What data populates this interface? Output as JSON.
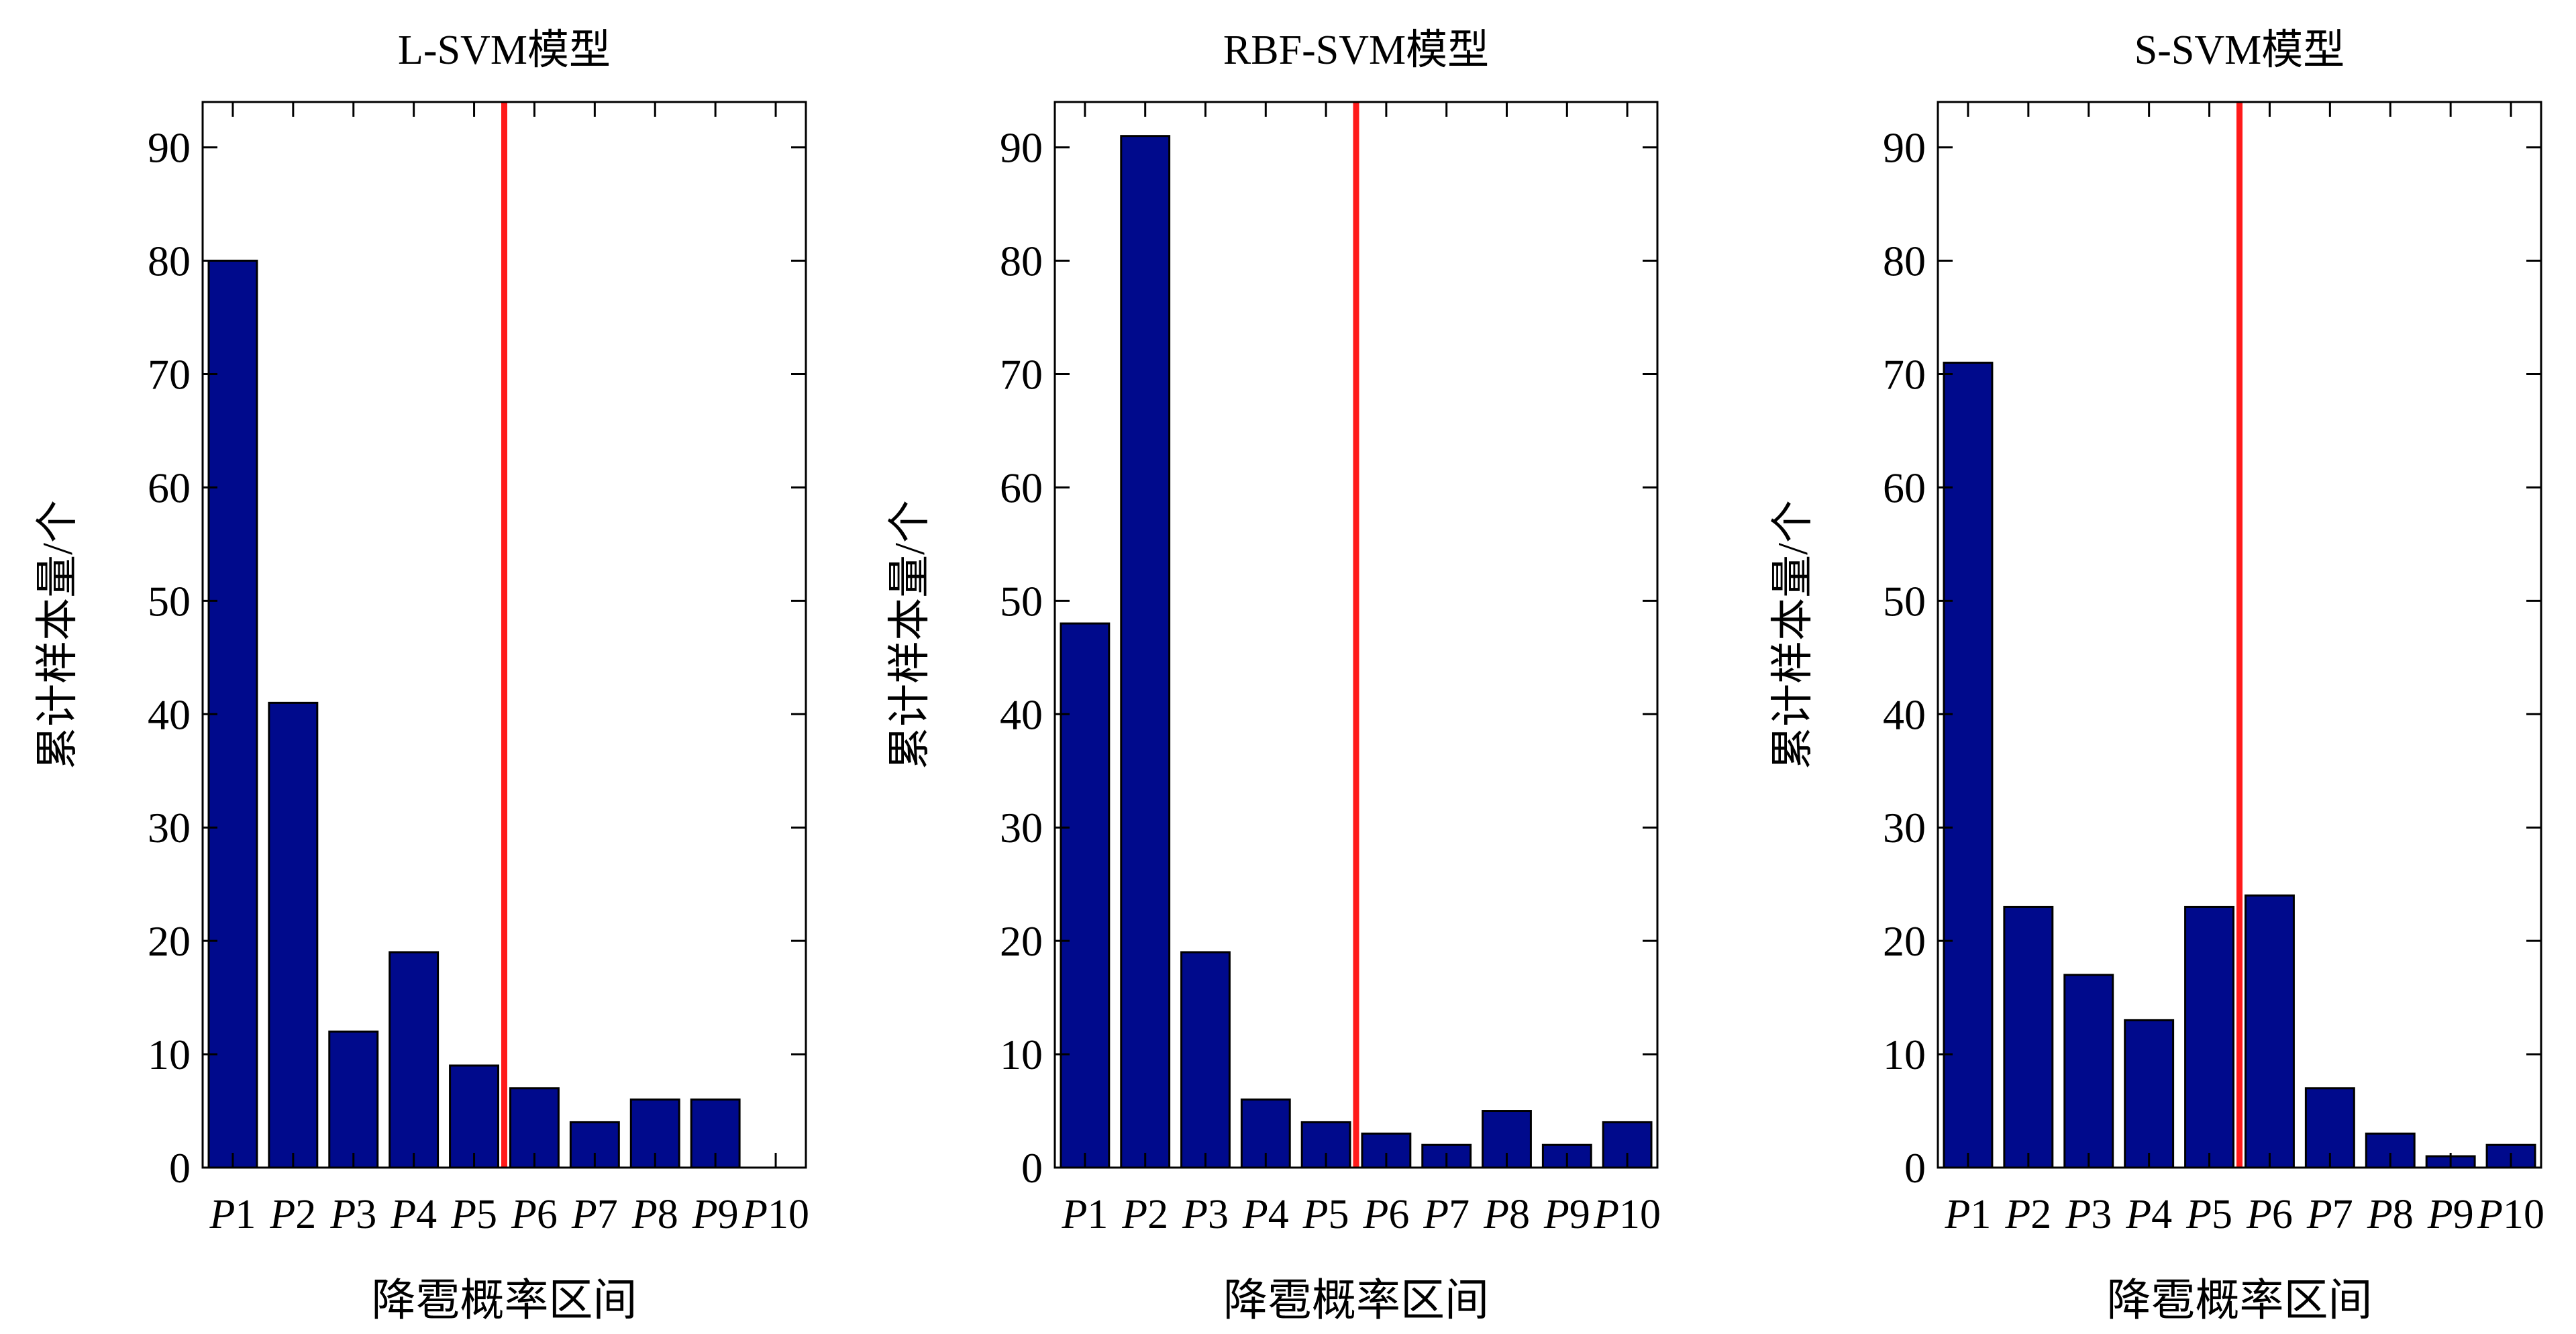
{
  "figure": {
    "colors": {
      "bar": "#000a8c",
      "bar_edge": "#000000",
      "threshold": "#ff1a1a",
      "axis": "#000000"
    }
  },
  "chart_data": [
    {
      "type": "bar",
      "title": "L-SVM模型",
      "xlabel": "降雹概率区间",
      "ylabel": "累计样本量/个",
      "categories": [
        "P1",
        "P2",
        "P3",
        "P4",
        "P5",
        "P6",
        "P7",
        "P8",
        "P9",
        "P10"
      ],
      "values": [
        80,
        41,
        12,
        19,
        9,
        7,
        4,
        6,
        6,
        0
      ],
      "ylim": [
        0,
        94
      ],
      "yticks": [
        0,
        10,
        20,
        30,
        40,
        50,
        60,
        70,
        80,
        90
      ],
      "threshold_between": [
        "P5",
        "P6"
      ],
      "grid": false
    },
    {
      "type": "bar",
      "title": "RBF-SVM模型",
      "xlabel": "降雹概率区间",
      "ylabel": "累计样本量/个",
      "categories": [
        "P1",
        "P2",
        "P3",
        "P4",
        "P5",
        "P6",
        "P7",
        "P8",
        "P9",
        "P10"
      ],
      "values": [
        48,
        91,
        19,
        6,
        4,
        3,
        2,
        5,
        2,
        4
      ],
      "ylim": [
        0,
        94
      ],
      "yticks": [
        0,
        10,
        20,
        30,
        40,
        50,
        60,
        70,
        80,
        90
      ],
      "threshold_between": [
        "P5",
        "P6"
      ],
      "grid": false
    },
    {
      "type": "bar",
      "title": "S-SVM模型",
      "xlabel": "降雹概率区间",
      "ylabel": "累计样本量/个",
      "categories": [
        "P1",
        "P2",
        "P3",
        "P4",
        "P5",
        "P6",
        "P7",
        "P8",
        "P9",
        "P10"
      ],
      "values": [
        71,
        23,
        17,
        13,
        23,
        24,
        7,
        3,
        1,
        2
      ],
      "ylim": [
        0,
        94
      ],
      "yticks": [
        0,
        10,
        20,
        30,
        40,
        50,
        60,
        70,
        80,
        90
      ],
      "threshold_between": [
        "P5",
        "P6"
      ],
      "grid": false
    }
  ]
}
